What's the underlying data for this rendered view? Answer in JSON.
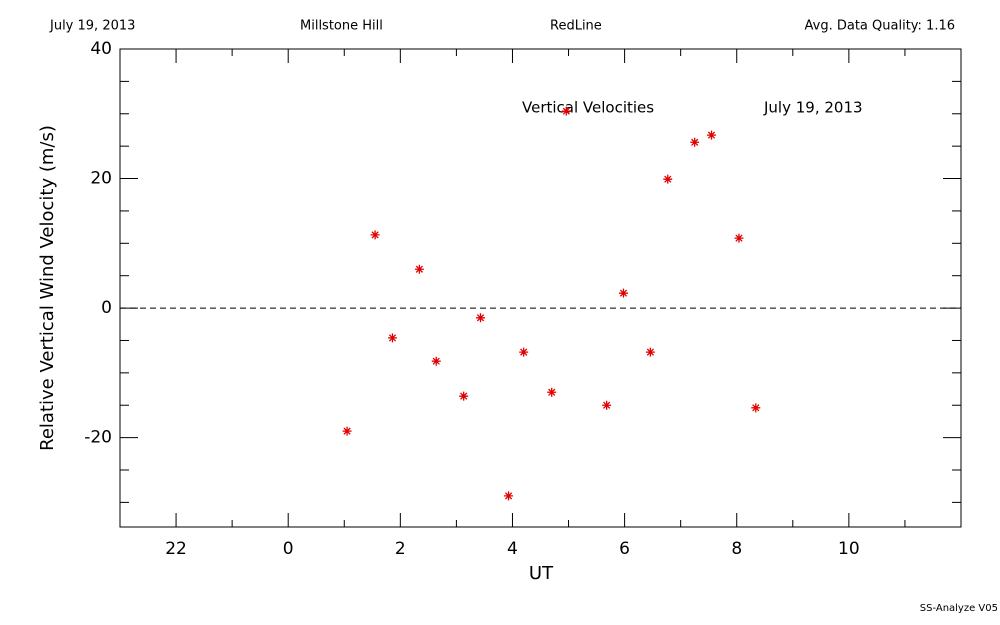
{
  "chart_data": {
    "type": "scatter",
    "header": {
      "date": "July 19, 2013",
      "site": "Millstone Hill",
      "line": "RedLine",
      "quality": "Avg. Data Quality: 1.16"
    },
    "annotations": [
      "Vertical Velocities",
      "July 19, 2013"
    ],
    "footer": "SS-Analyze V05",
    "xlabel": "UT",
    "ylabel": "Relative Vertical Wind Velocity (m/s)",
    "xlim": [
      -3,
      12
    ],
    "ylim": [
      -33.8,
      40
    ],
    "xticks": [
      {
        "value": -2,
        "label": "22"
      },
      0,
      2,
      4,
      6,
      8,
      10
    ],
    "xminor_ticks": [
      -3,
      -1,
      1,
      3,
      5,
      7,
      9,
      11
    ],
    "yticks": [
      -20,
      0,
      20,
      40
    ],
    "yminor_ticks": [
      -30,
      -25,
      -15,
      -10,
      -5,
      5,
      10,
      15,
      25,
      30,
      35
    ],
    "hline": 0,
    "color": "#e00000",
    "x": [
      1.05,
      1.55,
      1.86,
      2.34,
      2.64,
      3.13,
      3.43,
      3.93,
      4.2,
      4.7,
      4.96,
      5.68,
      5.98,
      6.46,
      6.77,
      7.25,
      7.55,
      8.04,
      8.34
    ],
    "values": [
      -19.0,
      11.3,
      -4.6,
      6.0,
      -8.2,
      -13.6,
      -1.5,
      -29.0,
      -6.8,
      -13.0,
      30.4,
      -15.0,
      2.3,
      -6.8,
      19.9,
      25.6,
      26.7,
      10.8,
      -15.4
    ]
  }
}
